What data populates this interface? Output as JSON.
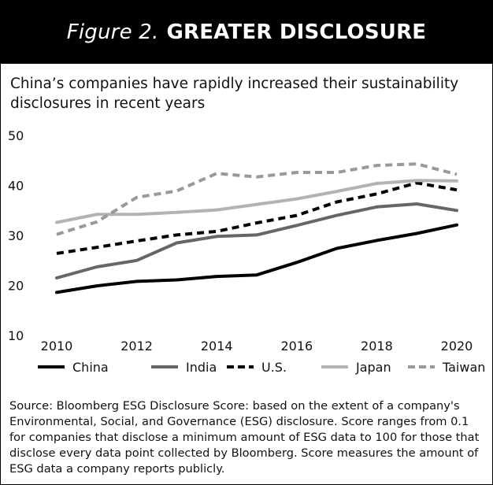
{
  "header": {
    "figure_label": "Figure 2.",
    "title": "GREATER DISCLOSURE"
  },
  "subtitle": "China’s companies have rapidly increased their sustainability disclosures in recent years",
  "source": "Source: Bloomberg ESG Disclosure Score: based on the extent of a company's Environmental, Social, and Governance (ESG) disclosure. Score ranges from 0.1 for companies that disclose a minimum amount of ESG data to 100 for those that disclose every data point collected by Bloomberg. Score measures the amount of ESG data a company reports publicly.",
  "chart_data": {
    "type": "line",
    "title": "",
    "xlabel": "",
    "ylabel": "",
    "x": [
      2010,
      2011,
      2012,
      2013,
      2014,
      2015,
      2016,
      2017,
      2018,
      2019,
      2020
    ],
    "x_ticks": [
      "2010",
      "2012",
      "2014",
      "2016",
      "2018",
      "2020"
    ],
    "y_ticks": [
      "10",
      "20",
      "30",
      "40",
      "50"
    ],
    "ylim": [
      10,
      50
    ],
    "grid": false,
    "legend_position": "bottom",
    "series": [
      {
        "name": "China",
        "color": "#000000",
        "dash": "solid",
        "values": [
          18.6,
          19.9,
          20.8,
          21.1,
          21.8,
          22.1,
          24.6,
          27.4,
          29.0,
          30.4,
          32.1
        ]
      },
      {
        "name": "India",
        "color": "#666666",
        "dash": "solid",
        "values": [
          21.5,
          23.7,
          25.0,
          28.5,
          29.8,
          30.1,
          32.0,
          34.0,
          35.7,
          36.3,
          35.0
        ]
      },
      {
        "name": "U.S.",
        "color": "#000000",
        "dash": "dashed",
        "values": [
          26.4,
          27.6,
          28.9,
          30.1,
          30.8,
          32.5,
          34.0,
          36.7,
          38.3,
          40.5,
          39.1
        ]
      },
      {
        "name": "Japan",
        "color": "#b3b3b3",
        "dash": "solid",
        "values": [
          32.6,
          34.2,
          34.2,
          34.6,
          35.1,
          36.2,
          37.3,
          38.8,
          40.4,
          41.0,
          40.9
        ]
      },
      {
        "name": "Taiwan",
        "color": "#999999",
        "dash": "dashed",
        "values": [
          30.2,
          32.7,
          37.6,
          38.9,
          42.4,
          41.7,
          42.6,
          42.6,
          44.0,
          44.3,
          42.2
        ]
      }
    ]
  }
}
